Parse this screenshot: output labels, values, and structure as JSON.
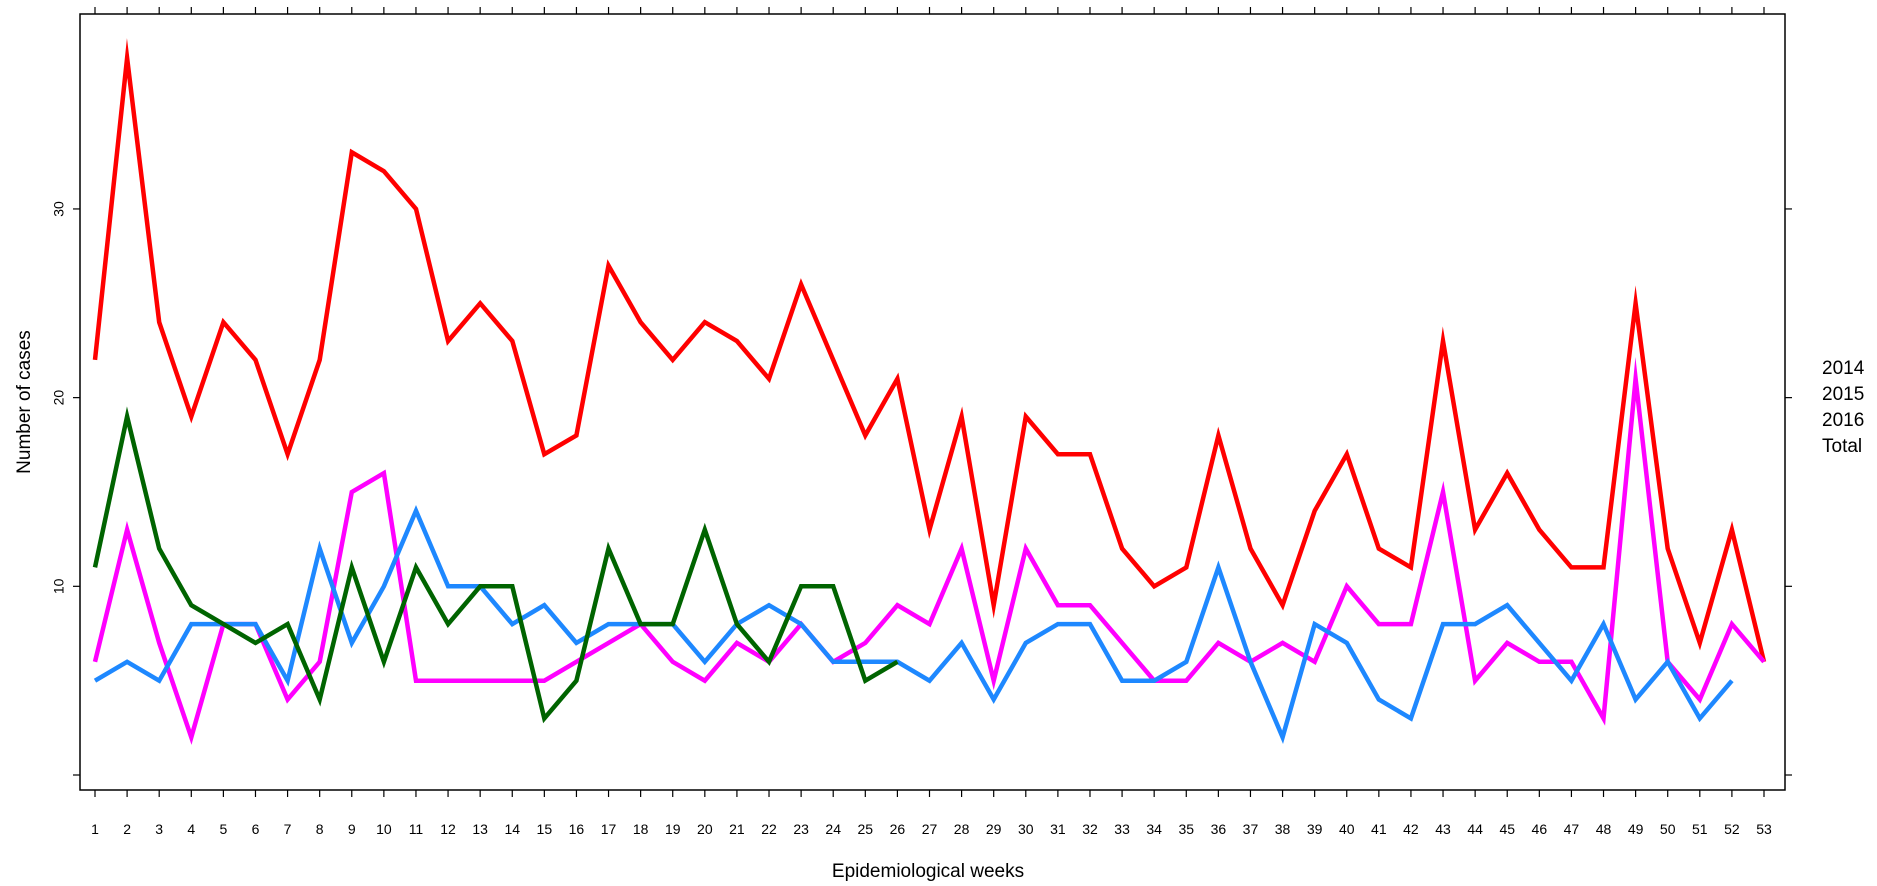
{
  "chart_data": {
    "type": "line",
    "xlabel": "Epidemiological weeks",
    "ylabel": "Number of cases",
    "x": [
      1,
      2,
      3,
      4,
      5,
      6,
      7,
      8,
      9,
      10,
      11,
      12,
      13,
      14,
      15,
      16,
      17,
      18,
      19,
      20,
      21,
      22,
      23,
      24,
      25,
      26,
      27,
      28,
      29,
      30,
      31,
      32,
      33,
      34,
      35,
      36,
      37,
      38,
      39,
      40,
      41,
      42,
      43,
      44,
      45,
      46,
      47,
      48,
      49,
      50,
      51,
      52,
      53
    ],
    "xlim": [
      1,
      53
    ],
    "ylim": [
      0,
      38
    ],
    "yticks": [
      10,
      20,
      30
    ],
    "grid": false,
    "legend_position": "right",
    "legend": [
      "2014",
      "2015",
      "2016",
      "Total"
    ],
    "series": [
      {
        "color": "#ff0000",
        "values": [
          22,
          38,
          24,
          19,
          24,
          22,
          17,
          22,
          33,
          32,
          30,
          23,
          25,
          23,
          17,
          18,
          27,
          24,
          22,
          24,
          23,
          21,
          26,
          22,
          18,
          21,
          13,
          19,
          9,
          19,
          17,
          17,
          12,
          10,
          11,
          18,
          12,
          9,
          14,
          17,
          12,
          11,
          23,
          13,
          16,
          13,
          11,
          11,
          25,
          12,
          7,
          13,
          6
        ]
      },
      {
        "color": "#ff00ff",
        "values": [
          6,
          13,
          7,
          2,
          8,
          8,
          4,
          6,
          15,
          16,
          5,
          5,
          5,
          5,
          5,
          6,
          7,
          8,
          6,
          5,
          7,
          6,
          8,
          6,
          7,
          9,
          8,
          12,
          5,
          12,
          9,
          9,
          7,
          5,
          5,
          7,
          6,
          7,
          6,
          10,
          8,
          8,
          15,
          5,
          7,
          6,
          6,
          3,
          21,
          6,
          4,
          8,
          6
        ]
      },
      {
        "color": "#1e88ff",
        "values": [
          5,
          6,
          5,
          8,
          8,
          8,
          5,
          12,
          7,
          10,
          14,
          10,
          10,
          8,
          9,
          7,
          8,
          8,
          8,
          6,
          8,
          9,
          8,
          6,
          6,
          6,
          5,
          7,
          4,
          7,
          8,
          8,
          5,
          5,
          6,
          11,
          6,
          2,
          8,
          7,
          4,
          3,
          8,
          8,
          9,
          7,
          5,
          8,
          4,
          6,
          3,
          5,
          null
        ]
      },
      {
        "color": "#006400",
        "values": [
          11,
          19,
          12,
          9,
          8,
          7,
          8,
          4,
          11,
          6,
          11,
          8,
          10,
          10,
          3,
          5,
          12,
          8,
          8,
          13,
          8,
          6,
          10,
          10,
          5,
          6,
          null,
          null,
          null,
          null,
          null,
          null,
          null,
          null,
          null,
          null,
          null,
          null,
          null,
          null,
          null,
          null,
          null,
          null,
          null,
          null,
          null,
          null,
          null,
          null,
          null,
          null,
          null
        ]
      }
    ]
  }
}
